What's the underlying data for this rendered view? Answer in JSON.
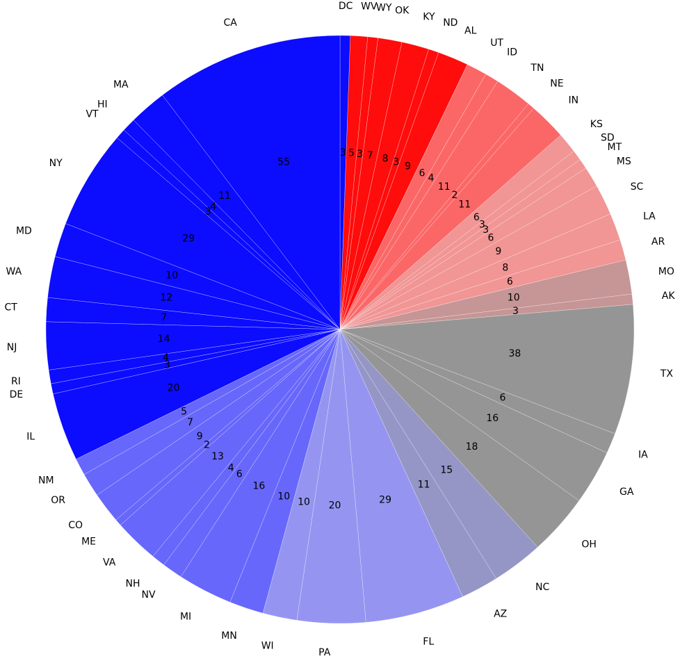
{
  "chart_data": {
    "type": "pie",
    "start": "top",
    "direction": "clockwise",
    "slices": [
      {
        "label": "DC",
        "value": 3,
        "color": "#0c0cff"
      },
      {
        "label": "WV",
        "value": 5,
        "color": "#ff0c0c"
      },
      {
        "label": "WY",
        "value": 3,
        "color": "#ff0c0c"
      },
      {
        "label": "OK",
        "value": 7,
        "color": "#ff0c0c"
      },
      {
        "label": "KY",
        "value": 8,
        "color": "#ff0c0c"
      },
      {
        "label": "ND",
        "value": 3,
        "color": "#ff0c0c"
      },
      {
        "label": "AL",
        "value": 9,
        "color": "#ff0c0c"
      },
      {
        "label": "UT",
        "value": 6,
        "color": "#fb6767"
      },
      {
        "label": "ID",
        "value": 4,
        "color": "#fb6767"
      },
      {
        "label": "TN",
        "value": 11,
        "color": "#fb6767"
      },
      {
        "label": "NE",
        "value": 2,
        "color": "#fb6767"
      },
      {
        "label": "IN",
        "value": 11,
        "color": "#fb6767"
      },
      {
        "label": "KS",
        "value": 6,
        "color": "#f19595"
      },
      {
        "label": "SD",
        "value": 3,
        "color": "#f19595"
      },
      {
        "label": "MT",
        "value": 3,
        "color": "#f19595"
      },
      {
        "label": "MS",
        "value": 6,
        "color": "#f19595"
      },
      {
        "label": "SC",
        "value": 9,
        "color": "#f19595"
      },
      {
        "label": "LA",
        "value": 8,
        "color": "#f19595"
      },
      {
        "label": "AR",
        "value": 6,
        "color": "#f19595"
      },
      {
        "label": "MO",
        "value": 10,
        "color": "#c69595"
      },
      {
        "label": "AK",
        "value": 3,
        "color": "#c69595"
      },
      {
        "label": "TX",
        "value": 38,
        "color": "#959595"
      },
      {
        "label": "IA",
        "value": 6,
        "color": "#959595"
      },
      {
        "label": "GA",
        "value": 16,
        "color": "#959595"
      },
      {
        "label": "OH",
        "value": 18,
        "color": "#959595"
      },
      {
        "label": "NC",
        "value": 15,
        "color": "#9595c6"
      },
      {
        "label": "AZ",
        "value": 11,
        "color": "#9595c6"
      },
      {
        "label": "FL",
        "value": 29,
        "color": "#9595f1"
      },
      {
        "label": "PA",
        "value": 20,
        "color": "#9595f1"
      },
      {
        "label": "WI",
        "value": 10,
        "color": "#9595f1"
      },
      {
        "label": "MN",
        "value": 10,
        "color": "#6767fb"
      },
      {
        "label": "MI",
        "value": 16,
        "color": "#6767fb"
      },
      {
        "label": "NV",
        "value": 6,
        "color": "#6767fb"
      },
      {
        "label": "NH",
        "value": 4,
        "color": "#6767fb"
      },
      {
        "label": "VA",
        "value": 13,
        "color": "#6767fb"
      },
      {
        "label": "ME",
        "value": 2,
        "color": "#6767fb"
      },
      {
        "label": "CO",
        "value": 9,
        "color": "#6767fb"
      },
      {
        "label": "OR",
        "value": 7,
        "color": "#6767fb"
      },
      {
        "label": "NM",
        "value": 5,
        "color": "#6767fb"
      },
      {
        "label": "IL",
        "value": 20,
        "color": "#0c0cff"
      },
      {
        "label": "DE",
        "value": 3,
        "color": "#0c0cff"
      },
      {
        "label": "RI",
        "value": 4,
        "color": "#0c0cff"
      },
      {
        "label": "NJ",
        "value": 14,
        "color": "#0c0cff"
      },
      {
        "label": "CT",
        "value": 7,
        "color": "#0c0cff"
      },
      {
        "label": "WA",
        "value": 12,
        "color": "#0c0cff"
      },
      {
        "label": "MD",
        "value": 10,
        "color": "#0c0cff"
      },
      {
        "label": "NY",
        "value": 29,
        "color": "#0c0cff"
      },
      {
        "label": "VT",
        "value": 3,
        "color": "#0c0cff"
      },
      {
        "label": "HI",
        "value": 4,
        "color": "#0c0cff"
      },
      {
        "label": "MA",
        "value": 11,
        "color": "#0c0cff"
      },
      {
        "label": "CA",
        "value": 55,
        "color": "#0c0cff"
      }
    ]
  }
}
